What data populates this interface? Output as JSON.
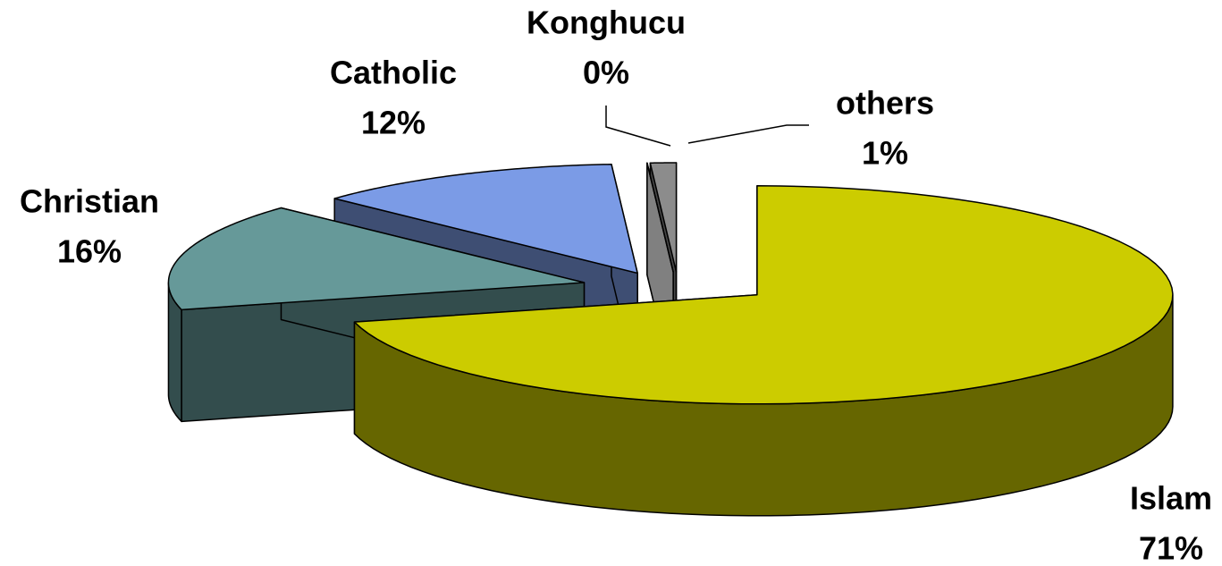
{
  "chart_data": {
    "type": "pie3d",
    "categories": [
      "Islam",
      "Christian",
      "Catholic",
      "Konghucu",
      "others"
    ],
    "values": [
      71,
      16,
      12,
      0,
      1
    ],
    "value_labels": [
      "71%",
      "16%",
      "12%",
      "0%",
      "1%"
    ],
    "colors": [
      "#cccc00",
      "#669999",
      "#7b9be6",
      "#ffffff",
      "#8c8c8c"
    ]
  }
}
